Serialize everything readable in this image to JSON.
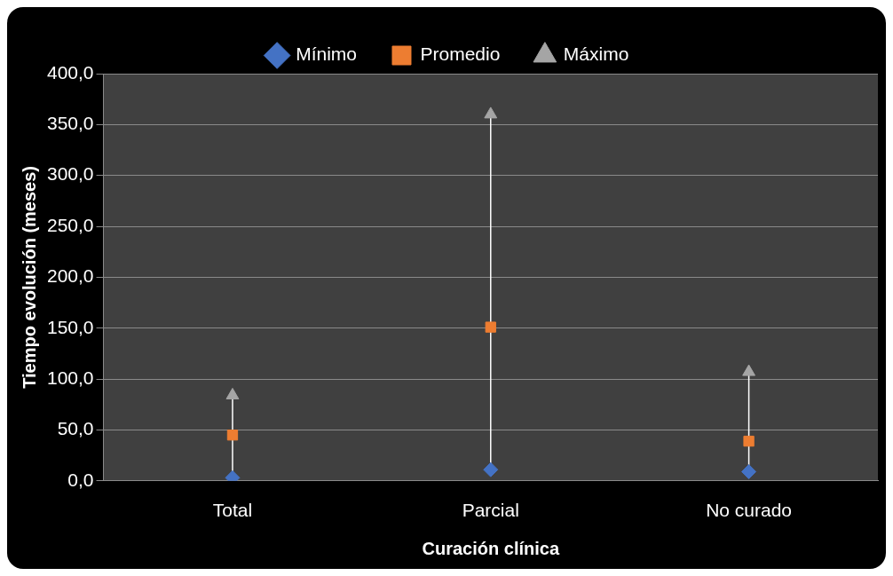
{
  "chart_data": {
    "type": "scatter",
    "xlabel": "Curación clínica",
    "ylabel": "Tiempo evolución (meses)",
    "categories": [
      "Total",
      "Parcial",
      "No curado"
    ],
    "series": [
      {
        "name": "Mínimo",
        "color": "#4472c4",
        "marker": "diamond",
        "values": [
          3,
          11,
          9
        ]
      },
      {
        "name": "Promedio",
        "color": "#ed7d31",
        "marker": "square",
        "values": [
          45,
          151,
          39
        ]
      },
      {
        "name": "Máximo",
        "color": "#a5a5a5",
        "marker": "triangle",
        "values": [
          84,
          360,
          107
        ]
      }
    ],
    "ylim": [
      0,
      400
    ],
    "yticks": [
      {
        "value": 0,
        "label": "0,0"
      },
      {
        "value": 50,
        "label": "50,0"
      },
      {
        "value": 100,
        "label": "100,0"
      },
      {
        "value": 150,
        "label": "150,0"
      },
      {
        "value": 200,
        "label": "200,0"
      },
      {
        "value": 250,
        "label": "250,0"
      },
      {
        "value": 300,
        "label": "300,0"
      },
      {
        "value": 350,
        "label": "350,0"
      },
      {
        "value": 400,
        "label": "400,0"
      }
    ],
    "grid": "y",
    "legend": "top"
  }
}
